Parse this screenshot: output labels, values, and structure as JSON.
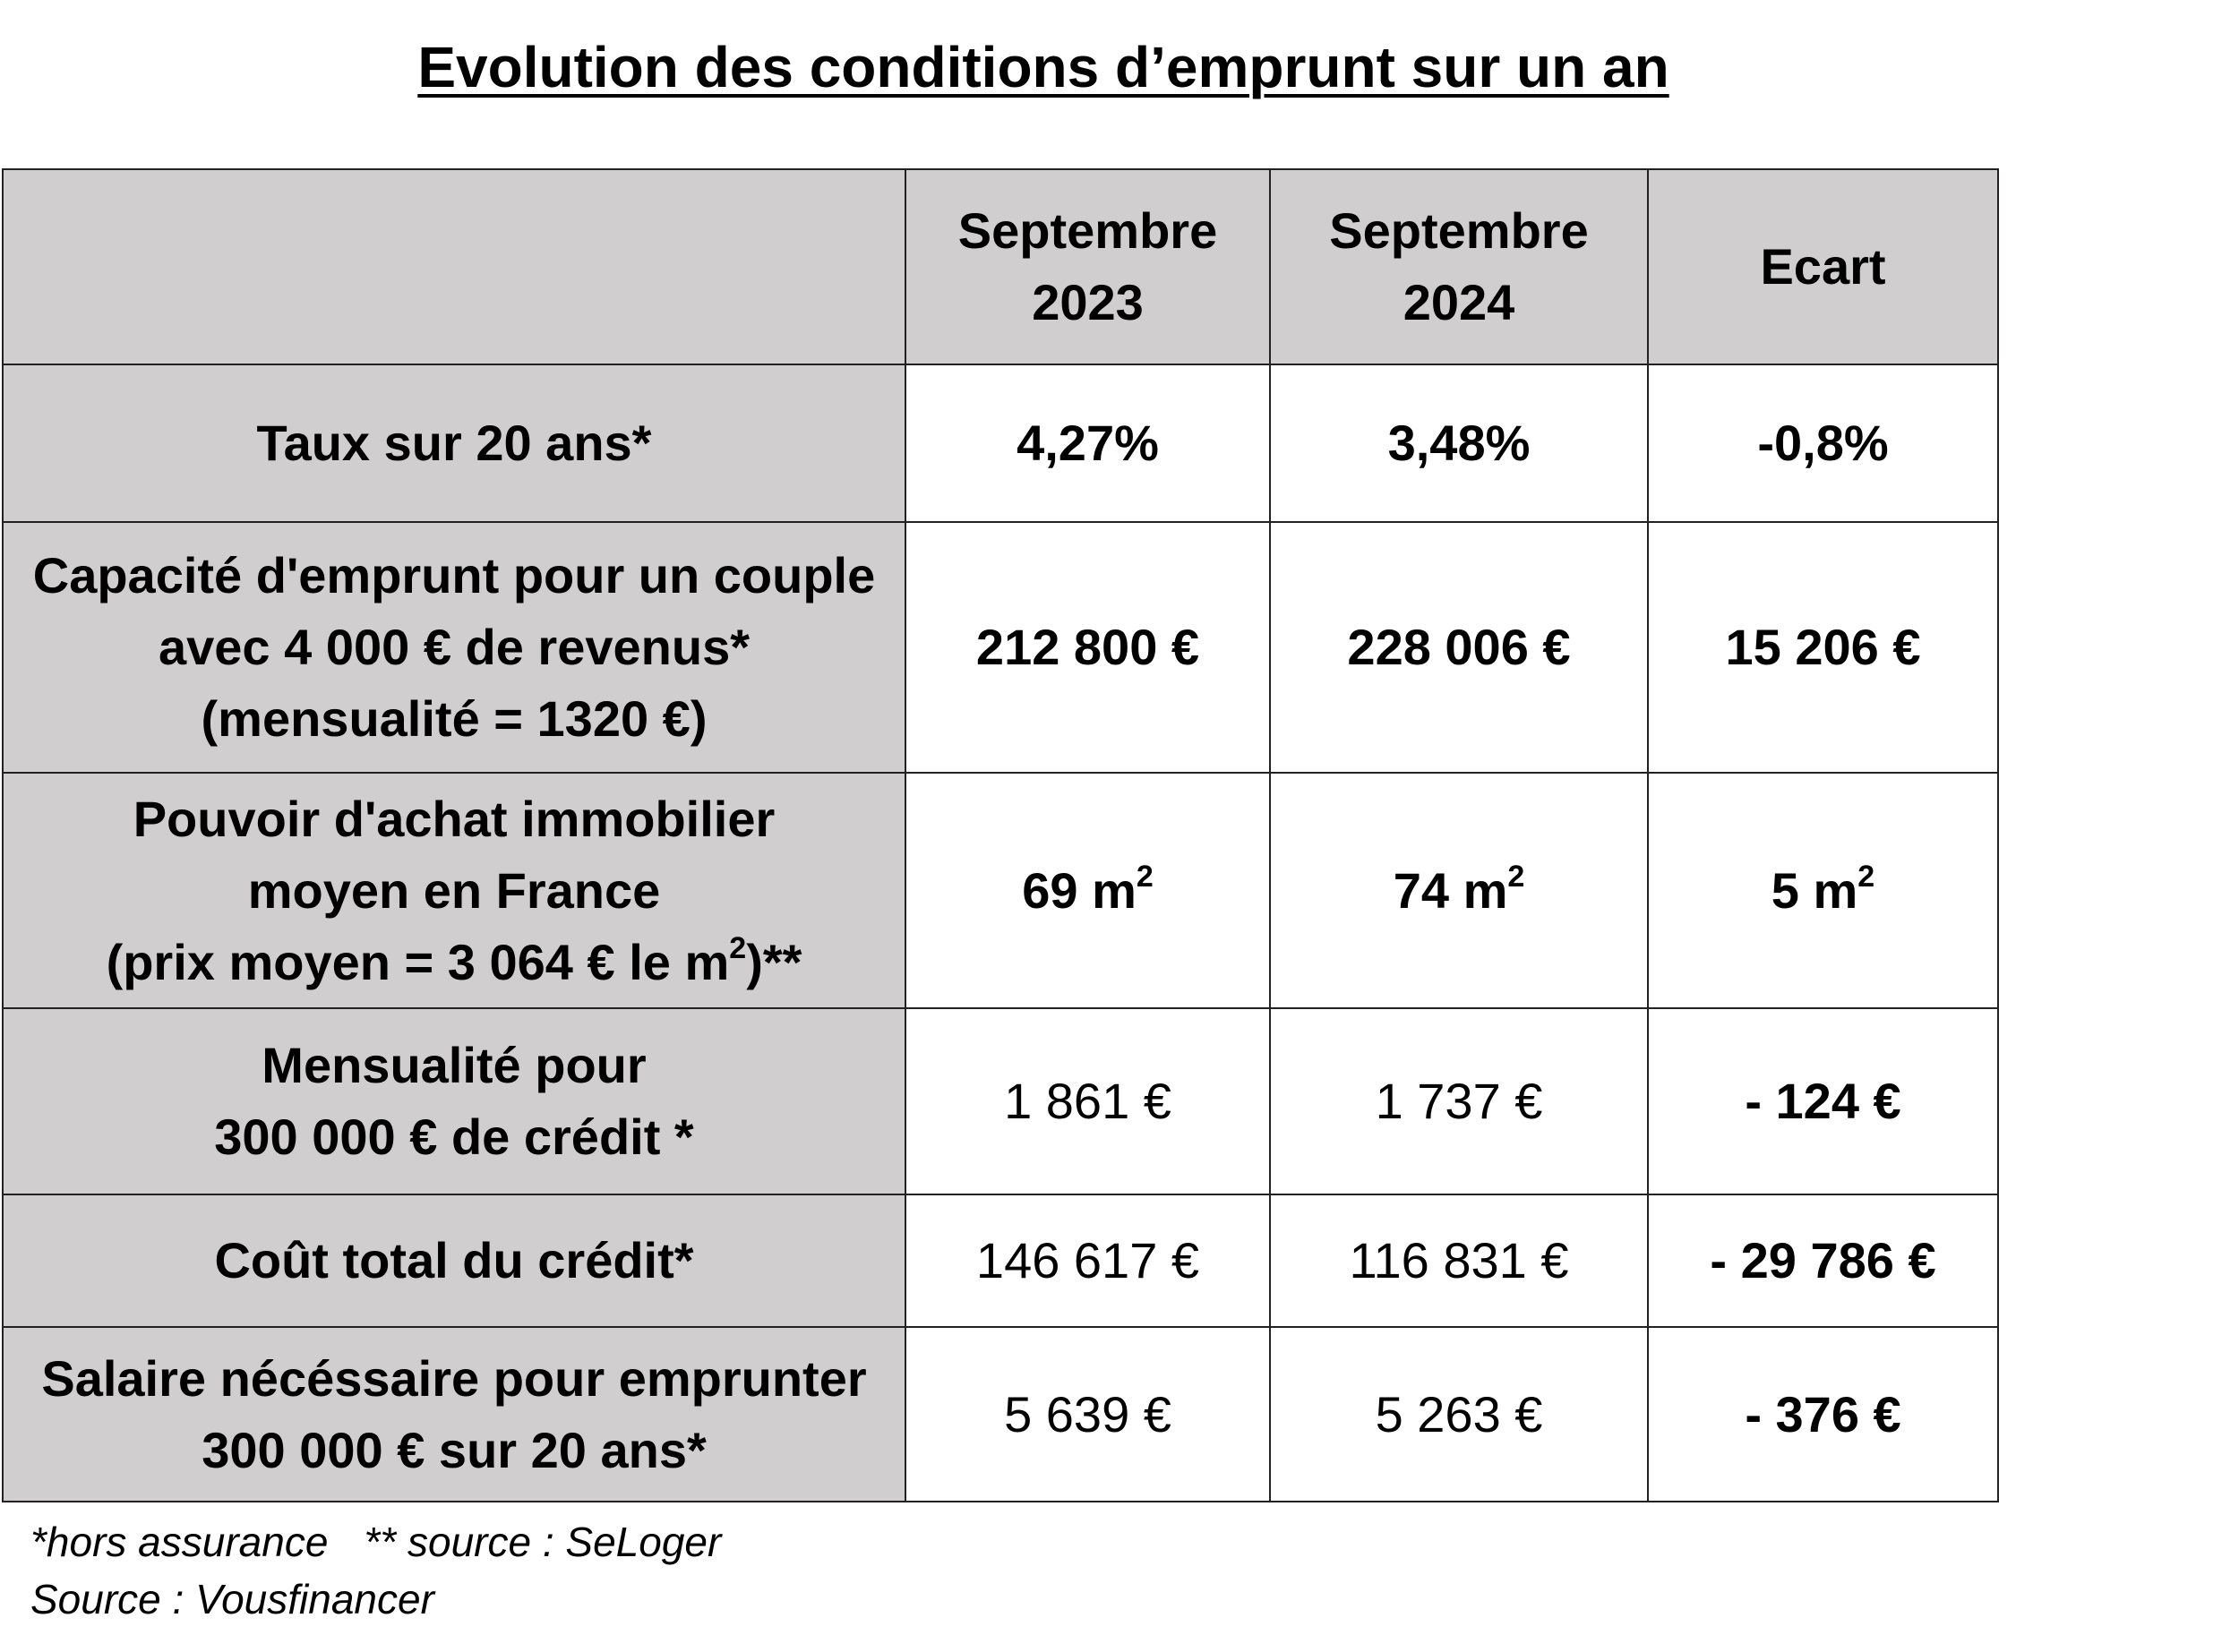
{
  "title": "Evolution des conditions d’emprunt sur un an",
  "header": {
    "col1_line1": "Septembre",
    "col1_line2": "2023",
    "col2_line1": "Septembre",
    "col2_line2": "2024",
    "col3": "Ecart"
  },
  "rows": [
    {
      "label": [
        "Taux sur 20 ans*"
      ],
      "v2023": "4,27%",
      "v2024": "3,48%",
      "ecart": "-0,8%"
    },
    {
      "label": [
        "Capacité d'emprunt pour un couple",
        "avec 4 000 € de revenus*",
        "(mensualité = 1320 €)"
      ],
      "v2023": "212 800 €",
      "v2024": "228 006 €",
      "ecart": "15 206 €"
    },
    {
      "label": [
        "Pouvoir d'achat immobilier",
        "moyen en France",
        "(prix moyen = 3 064 € le m",
        "2",
        ")**"
      ],
      "v2023": "69 m",
      "v2024": "74 m",
      "ecart": "5 m",
      "sup": "2"
    },
    {
      "label": [
        "Mensualité pour",
        "300 000 € de crédit *"
      ],
      "v2023": "1 861 €",
      "v2024": "1 737 €",
      "ecart": "- 124 €"
    },
    {
      "label": [
        "Coût total du crédit*"
      ],
      "v2023": "146 617 €",
      "v2024": "116 831 €",
      "ecart": "- 29 786 €"
    },
    {
      "label": [
        "Salaire nécéssaire pour emprunter",
        "300 000 € sur 20 ans*"
      ],
      "v2023": "5 639 €",
      "v2024": "5 263 €",
      "ecart": "- 376 €"
    }
  ],
  "notes": {
    "insurance": "*hors assurance",
    "seloger": "** source : SeLoger",
    "source": "Source : Vousfinancer"
  }
}
